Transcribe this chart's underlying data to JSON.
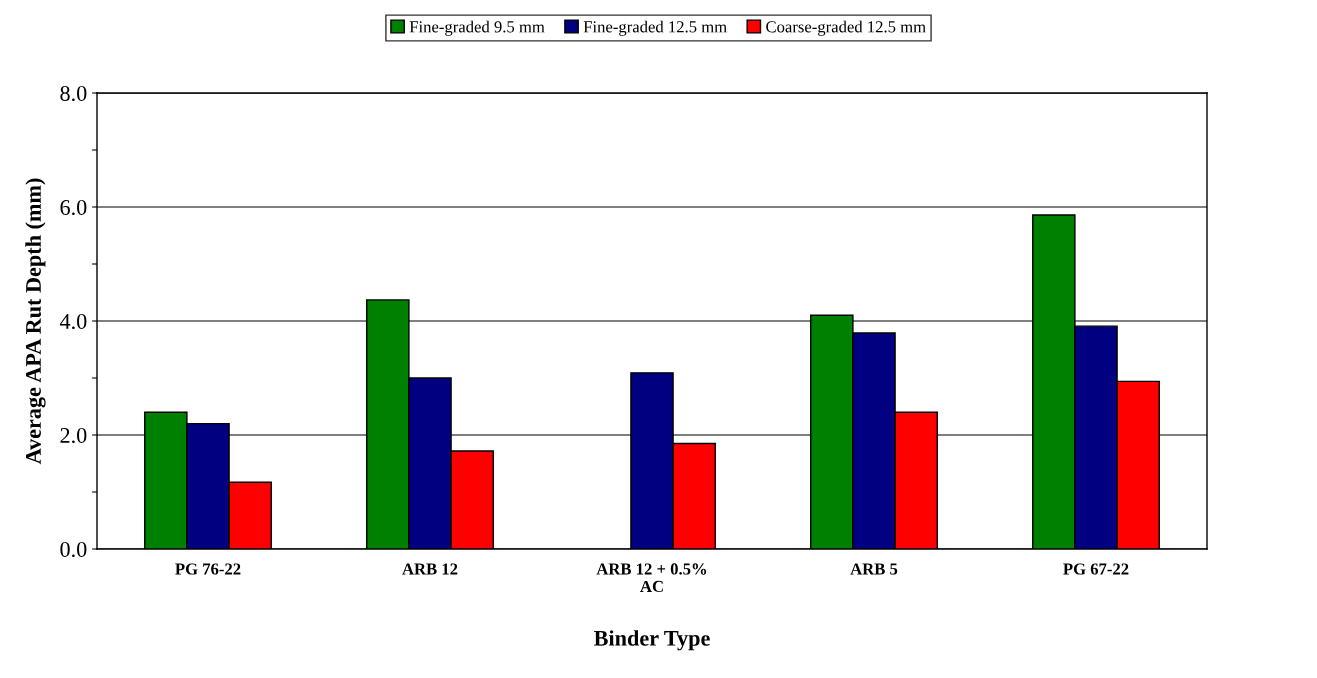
{
  "chart_data": {
    "type": "bar",
    "xlabel": "Binder Type",
    "ylabel": "Average APA Rut Depth (mm)",
    "categories": [
      "PG 76-22",
      "ARB 12",
      "ARB 12 + 0.5%\nAC",
      "ARB 5",
      "PG 67-22"
    ],
    "series": [
      {
        "name": "Fine-graded 9.5 mm",
        "color": "#008000",
        "values": [
          2.4,
          4.37,
          null,
          4.1,
          5.86
        ]
      },
      {
        "name": "Fine-graded 12.5 mm",
        "color": "#000080",
        "values": [
          2.2,
          3.0,
          3.09,
          3.79,
          3.91
        ]
      },
      {
        "name": "Coarse-graded 12.5 mm",
        "color": "#ff0000",
        "values": [
          1.17,
          1.72,
          1.85,
          2.4,
          2.94
        ]
      }
    ],
    "ylim": [
      0,
      8
    ],
    "yticks": [
      {
        "value": 0,
        "label": "0.0"
      },
      {
        "value": 1,
        "label": null
      },
      {
        "value": 2,
        "label": "2.0"
      },
      {
        "value": 3,
        "label": null
      },
      {
        "value": 4,
        "label": "4.0"
      },
      {
        "value": 5,
        "label": null
      },
      {
        "value": 6,
        "label": "6.0"
      },
      {
        "value": 7,
        "label": null
      },
      {
        "value": 8,
        "label": "8.0"
      }
    ],
    "grid": "y",
    "legend": "top"
  }
}
